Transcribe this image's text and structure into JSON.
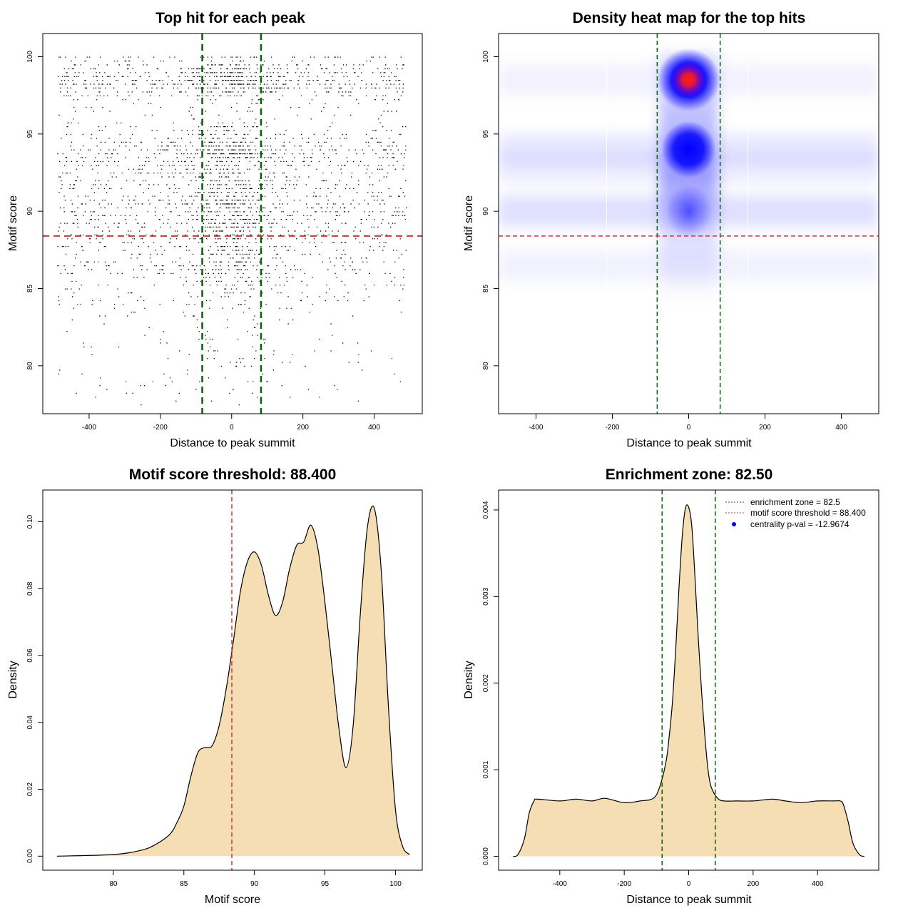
{
  "chart_data": [
    {
      "type": "scatter",
      "title": "Top hit for each peak",
      "xlabel": "Distance to peak summit",
      "ylabel": "Motif score",
      "xlim": [
        -530,
        535
      ],
      "ylim": [
        76.9,
        101.5
      ],
      "xticks": [
        -400,
        -200,
        0,
        200,
        400
      ],
      "yticks": [
        80,
        85,
        90,
        95,
        100
      ],
      "x_range_of_points": [
        -490,
        490
      ],
      "score_density_modes": [
        86.5,
        90.0,
        93.8,
        98.5
      ],
      "vlines": {
        "values": [
          -82.5,
          82.5
        ],
        "color": "#006400",
        "style": "dashed"
      },
      "hline": {
        "value": 88.4,
        "color": "#cd3333",
        "style": "dashed"
      },
      "point_color": "#000000",
      "grid": false
    },
    {
      "type": "heatmap",
      "title": "Density heat map for the top hits",
      "xlabel": "Distance to peak summit",
      "ylabel": "Motif score",
      "xlim": [
        -498,
        498
      ],
      "ylim": [
        76.9,
        101.5
      ],
      "xticks": [
        -400,
        -200,
        0,
        200,
        400
      ],
      "yticks": [
        80,
        85,
        90,
        95,
        100
      ],
      "hotspots": [
        {
          "x": 0,
          "y": 98.5,
          "intensity": "max"
        },
        {
          "x": 0,
          "y": 94.0,
          "intensity": "high"
        },
        {
          "x": 0,
          "y": 90.0,
          "intensity": "medium"
        }
      ],
      "color_scale": [
        "#ffffff",
        "#0000ff",
        "#ff0000"
      ],
      "vlines": {
        "values": [
          -82.5,
          82.5
        ],
        "color": "#006400",
        "style": "dashed"
      },
      "hline": {
        "value": 88.4,
        "color": "#cd3333",
        "style": "dashed"
      }
    },
    {
      "type": "area",
      "title": "Motif score threshold: 88.400",
      "xlabel": "Motif score",
      "ylabel": "Density",
      "xlim": [
        75.0,
        101.9
      ],
      "ylim": [
        -0.0042,
        0.1095
      ],
      "xticks": [
        80,
        85,
        90,
        95,
        100
      ],
      "yticks": [
        0.0,
        0.02,
        0.04,
        0.06,
        0.08,
        0.1
      ],
      "ytick_labels": [
        "0.00",
        "0.02",
        "0.04",
        "0.06",
        "0.08",
        "0.10"
      ],
      "x": [
        76.0,
        80.0,
        82.0,
        83.0,
        84.0,
        84.5,
        85.0,
        85.5,
        86.0,
        86.5,
        87.0,
        87.5,
        88.0,
        88.5,
        89.0,
        89.5,
        90.0,
        90.5,
        91.0,
        91.5,
        92.0,
        92.5,
        93.0,
        93.5,
        94.0,
        94.5,
        95.0,
        95.5,
        96.0,
        96.5,
        97.0,
        97.5,
        98.0,
        98.5,
        99.0,
        99.5,
        100.0,
        100.5,
        101.0
      ],
      "y": [
        0.0,
        0.0005,
        0.0018,
        0.0035,
        0.0065,
        0.01,
        0.015,
        0.024,
        0.031,
        0.0325,
        0.033,
        0.039,
        0.05,
        0.064,
        0.079,
        0.088,
        0.091,
        0.087,
        0.078,
        0.072,
        0.076,
        0.086,
        0.093,
        0.094,
        0.099,
        0.092,
        0.076,
        0.057,
        0.038,
        0.0265,
        0.039,
        0.072,
        0.098,
        0.104,
        0.085,
        0.045,
        0.014,
        0.003,
        0.0005
      ],
      "fill_color": "#f5deb3",
      "vline": {
        "value": 88.4,
        "color": "#cd3333",
        "style": "dashed"
      }
    },
    {
      "type": "area",
      "title": "Enrichment zone: 82.50",
      "xlabel": "Distance to peak summit",
      "ylabel": "Density",
      "xlim": [
        -590,
        590
      ],
      "ylim": [
        -0.00016,
        0.00423
      ],
      "xticks": [
        -400,
        -200,
        0,
        200,
        400
      ],
      "yticks": [
        0.0,
        0.001,
        0.002,
        0.003,
        0.004
      ],
      "ytick_labels": [
        "0.000",
        "0.001",
        "0.002",
        "0.003",
        "0.004"
      ],
      "x": [
        -545,
        -530,
        -510,
        -495,
        -480,
        -470,
        -400,
        -350,
        -300,
        -260,
        -200,
        -150,
        -110,
        -90,
        -70,
        -60,
        -50,
        -40,
        -30,
        -20,
        -10,
        0,
        10,
        20,
        30,
        40,
        50,
        60,
        70,
        90,
        110,
        150,
        200,
        260,
        300,
        350,
        400,
        450,
        470,
        480,
        495,
        510,
        530,
        545
      ],
      "y": [
        0.0,
        2e-05,
        0.0002,
        0.0005,
        0.00064,
        0.00066,
        0.00064,
        0.00066,
        0.00064,
        0.00067,
        0.00062,
        0.00064,
        0.00067,
        0.0008,
        0.0011,
        0.0014,
        0.0018,
        0.0024,
        0.0031,
        0.0037,
        0.00402,
        0.00403,
        0.0038,
        0.0032,
        0.0025,
        0.0019,
        0.0014,
        0.001,
        0.0008,
        0.00067,
        0.00064,
        0.00064,
        0.00064,
        0.00066,
        0.00064,
        0.00062,
        0.00064,
        0.00064,
        0.00064,
        0.0006,
        0.0004,
        0.00015,
        2e-05,
        0.0
      ],
      "fill_color": "#f5deb3",
      "vlines": {
        "values": [
          -82.5,
          82.5
        ],
        "color": "#006400",
        "style": "dashed"
      },
      "legend": {
        "placement": "top-right",
        "entries": [
          {
            "label": "enrichment zone = 82.5",
            "color": "#006400",
            "style": "dotted-line"
          },
          {
            "label": "motif score threshold = 88.400",
            "color": "#cd3333",
            "style": "dotted-line"
          },
          {
            "label": "centrality p-val = -12.9674",
            "color": "#0000ff",
            "style": "point"
          }
        ]
      }
    }
  ]
}
